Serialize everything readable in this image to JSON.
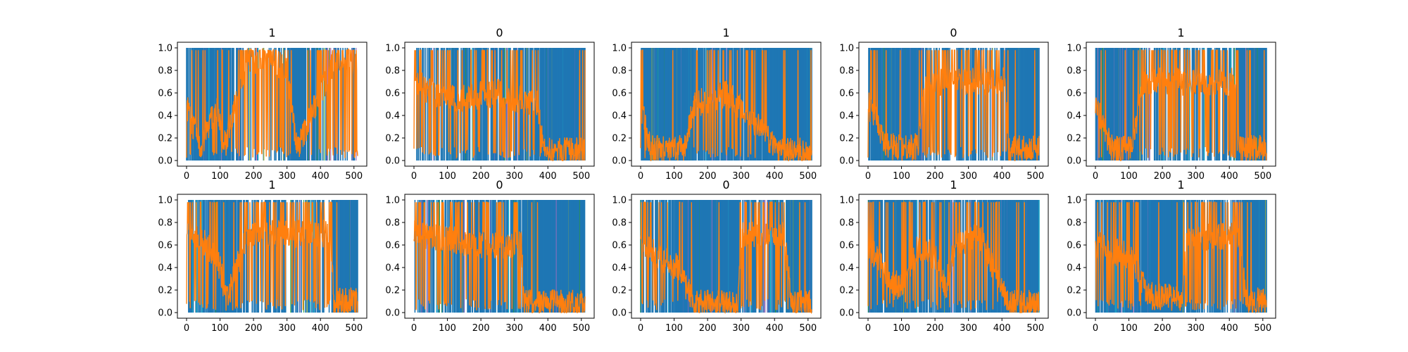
{
  "chart_data": [
    {
      "type": "line",
      "title": "1",
      "x_ticks": [
        "0",
        "100",
        "200",
        "300",
        "400",
        "500"
      ],
      "y_ticks": [
        "0.0",
        "0.2",
        "0.4",
        "0.6",
        "0.8",
        "1.0"
      ],
      "xlim": [
        0,
        511
      ],
      "ylim": [
        0,
        1
      ],
      "series": [
        {
          "color": "#1f77b4",
          "segments": [
            [
              0,
              0.5
            ],
            [
              40,
              0.9
            ],
            [
              90,
              0.5
            ],
            [
              110,
              0.9
            ],
            [
              180,
              0.12
            ],
            [
              260,
              0.12
            ],
            [
              300,
              0.2
            ],
            [
              330,
              0.9
            ],
            [
              440,
              0.12
            ],
            [
              511,
              0.12
            ]
          ]
        },
        {
          "color": "#ff7f0e",
          "segments": [
            [
              0,
              0.5
            ],
            [
              40,
              0.1
            ],
            [
              90,
              0.5
            ],
            [
              110,
              0.1
            ],
            [
              180,
              0.88
            ],
            [
              260,
              0.88
            ],
            [
              300,
              0.8
            ],
            [
              330,
              0.1
            ],
            [
              440,
              0.88
            ],
            [
              511,
              0.88
            ]
          ]
        }
      ]
    },
    {
      "type": "line",
      "title": "0",
      "x_ticks": [
        "0",
        "100",
        "200",
        "300",
        "400",
        "500"
      ],
      "y_ticks": [
        "0.0",
        "0.2",
        "0.4",
        "0.6",
        "0.8",
        "1.0"
      ],
      "xlim": [
        0,
        511
      ],
      "ylim": [
        0,
        1
      ],
      "series": [
        {
          "color": "#1f77b4",
          "segments": [
            [
              0,
              0.3
            ],
            [
              60,
              0.4
            ],
            [
              120,
              0.45
            ],
            [
              250,
              0.4
            ],
            [
              370,
              0.5
            ],
            [
              390,
              0.92
            ],
            [
              511,
              0.92
            ]
          ]
        },
        {
          "color": "#ff7f0e",
          "segments": [
            [
              0,
              0.7
            ],
            [
              60,
              0.6
            ],
            [
              120,
              0.55
            ],
            [
              250,
              0.6
            ],
            [
              370,
              0.5
            ],
            [
              390,
              0.08
            ],
            [
              511,
              0.08
            ]
          ]
        }
      ]
    },
    {
      "type": "line",
      "title": "1",
      "x_ticks": [
        "0",
        "100",
        "200",
        "300",
        "400",
        "500"
      ],
      "y_ticks": [
        "0.0",
        "0.2",
        "0.4",
        "0.6",
        "0.8",
        "1.0"
      ],
      "xlim": [
        0,
        511
      ],
      "ylim": [
        0,
        1
      ],
      "series": [
        {
          "color": "#1f77b4",
          "segments": [
            [
              0,
              0.5
            ],
            [
              30,
              0.9
            ],
            [
              130,
              0.9
            ],
            [
              160,
              0.5
            ],
            [
              260,
              0.4
            ],
            [
              420,
              0.92
            ],
            [
              511,
              0.92
            ]
          ]
        },
        {
          "color": "#ff7f0e",
          "segments": [
            [
              0,
              0.5
            ],
            [
              30,
              0.1
            ],
            [
              130,
              0.1
            ],
            [
              160,
              0.5
            ],
            [
              260,
              0.6
            ],
            [
              420,
              0.08
            ],
            [
              511,
              0.08
            ]
          ]
        }
      ]
    },
    {
      "type": "line",
      "title": "0",
      "x_ticks": [
        "0",
        "100",
        "200",
        "300",
        "400",
        "500"
      ],
      "y_ticks": [
        "0.0",
        "0.2",
        "0.4",
        "0.6",
        "0.8",
        "1.0"
      ],
      "xlim": [
        0,
        511
      ],
      "ylim": [
        0,
        1
      ],
      "series": [
        {
          "color": "#1f77b4",
          "segments": [
            [
              0,
              0.5
            ],
            [
              60,
              0.88
            ],
            [
              150,
              0.88
            ],
            [
              170,
              0.3
            ],
            [
              410,
              0.3
            ],
            [
              420,
              0.9
            ],
            [
              511,
              0.9
            ]
          ]
        },
        {
          "color": "#ff7f0e",
          "segments": [
            [
              0,
              0.5
            ],
            [
              60,
              0.12
            ],
            [
              150,
              0.12
            ],
            [
              170,
              0.7
            ],
            [
              410,
              0.7
            ],
            [
              420,
              0.1
            ],
            [
              511,
              0.1
            ]
          ]
        }
      ]
    },
    {
      "type": "line",
      "title": "1",
      "x_ticks": [
        "0",
        "100",
        "200",
        "300",
        "400",
        "500"
      ],
      "y_ticks": [
        "0.0",
        "0.2",
        "0.4",
        "0.6",
        "0.8",
        "1.0"
      ],
      "xlim": [
        0,
        511
      ],
      "ylim": [
        0,
        1
      ],
      "series": [
        {
          "color": "#1f77b4",
          "segments": [
            [
              0,
              0.5
            ],
            [
              50,
              0.9
            ],
            [
              110,
              0.9
            ],
            [
              140,
              0.3
            ],
            [
              420,
              0.3
            ],
            [
              430,
              0.9
            ],
            [
              511,
              0.9
            ]
          ]
        },
        {
          "color": "#ff7f0e",
          "segments": [
            [
              0,
              0.5
            ],
            [
              50,
              0.1
            ],
            [
              110,
              0.1
            ],
            [
              140,
              0.7
            ],
            [
              420,
              0.7
            ],
            [
              430,
              0.1
            ],
            [
              511,
              0.1
            ]
          ]
        }
      ]
    },
    {
      "type": "line",
      "title": "1",
      "x_ticks": [
        "0",
        "100",
        "200",
        "300",
        "400",
        "500"
      ],
      "y_ticks": [
        "0.0",
        "0.2",
        "0.4",
        "0.6",
        "0.8",
        "1.0"
      ],
      "xlim": [
        0,
        511
      ],
      "ylim": [
        0,
        1
      ],
      "series": [
        {
          "color": "#1f77b4",
          "segments": [
            [
              0,
              0.2
            ],
            [
              60,
              0.4
            ],
            [
              100,
              0.6
            ],
            [
              120,
              0.9
            ],
            [
              180,
              0.3
            ],
            [
              430,
              0.3
            ],
            [
              440,
              0.9
            ],
            [
              511,
              0.9
            ]
          ]
        },
        {
          "color": "#ff7f0e",
          "segments": [
            [
              0,
              0.8
            ],
            [
              60,
              0.6
            ],
            [
              100,
              0.4
            ],
            [
              120,
              0.1
            ],
            [
              180,
              0.7
            ],
            [
              430,
              0.7
            ],
            [
              440,
              0.1
            ],
            [
              511,
              0.1
            ]
          ]
        }
      ]
    },
    {
      "type": "line",
      "title": "0",
      "x_ticks": [
        "0",
        "100",
        "200",
        "300",
        "400",
        "500"
      ],
      "y_ticks": [
        "0.0",
        "0.2",
        "0.4",
        "0.6",
        "0.8",
        "1.0"
      ],
      "xlim": [
        0,
        511
      ],
      "ylim": [
        0,
        1
      ],
      "series": [
        {
          "color": "#1f77b4",
          "segments": [
            [
              0,
              0.3
            ],
            [
              100,
              0.35
            ],
            [
              200,
              0.4
            ],
            [
              320,
              0.4
            ],
            [
              330,
              0.92
            ],
            [
              511,
              0.92
            ]
          ]
        },
        {
          "color": "#ff7f0e",
          "segments": [
            [
              0,
              0.7
            ],
            [
              100,
              0.65
            ],
            [
              200,
              0.6
            ],
            [
              320,
              0.6
            ],
            [
              330,
              0.08
            ],
            [
              511,
              0.08
            ]
          ]
        }
      ]
    },
    {
      "type": "line",
      "title": "0",
      "x_ticks": [
        "0",
        "100",
        "200",
        "300",
        "400",
        "500"
      ],
      "y_ticks": [
        "0.0",
        "0.2",
        "0.4",
        "0.6",
        "0.8",
        "1.0"
      ],
      "xlim": [
        0,
        511
      ],
      "ylim": [
        0,
        1
      ],
      "series": [
        {
          "color": "#1f77b4",
          "segments": [
            [
              0,
              0.4
            ],
            [
              110,
              0.6
            ],
            [
              160,
              0.92
            ],
            [
              290,
              0.92
            ],
            [
              300,
              0.3
            ],
            [
              430,
              0.3
            ],
            [
              450,
              0.92
            ],
            [
              511,
              0.92
            ]
          ]
        },
        {
          "color": "#ff7f0e",
          "segments": [
            [
              0,
              0.6
            ],
            [
              110,
              0.4
            ],
            [
              160,
              0.08
            ],
            [
              290,
              0.08
            ],
            [
              300,
              0.7
            ],
            [
              430,
              0.7
            ],
            [
              450,
              0.08
            ],
            [
              511,
              0.08
            ]
          ]
        }
      ]
    },
    {
      "type": "line",
      "title": "1",
      "x_ticks": [
        "0",
        "100",
        "200",
        "300",
        "400",
        "500"
      ],
      "y_ticks": [
        "0.0",
        "0.2",
        "0.4",
        "0.6",
        "0.8",
        "1.0"
      ],
      "xlim": [
        0,
        511
      ],
      "ylim": [
        0,
        1
      ],
      "series": [
        {
          "color": "#1f77b4",
          "segments": [
            [
              0,
              0.4
            ],
            [
              60,
              0.7
            ],
            [
              110,
              0.8
            ],
            [
              150,
              0.4
            ],
            [
              200,
              0.5
            ],
            [
              230,
              0.8
            ],
            [
              260,
              0.4
            ],
            [
              330,
              0.3
            ],
            [
              420,
              0.92
            ],
            [
              511,
              0.92
            ]
          ]
        },
        {
          "color": "#ff7f0e",
          "segments": [
            [
              0,
              0.6
            ],
            [
              60,
              0.3
            ],
            [
              110,
              0.2
            ],
            [
              150,
              0.6
            ],
            [
              200,
              0.5
            ],
            [
              230,
              0.2
            ],
            [
              260,
              0.6
            ],
            [
              330,
              0.7
            ],
            [
              420,
              0.08
            ],
            [
              511,
              0.08
            ]
          ]
        }
      ]
    },
    {
      "type": "line",
      "title": "1",
      "x_ticks": [
        "0",
        "100",
        "200",
        "300",
        "400",
        "500"
      ],
      "y_ticks": [
        "0.0",
        "0.2",
        "0.4",
        "0.6",
        "0.8",
        "1.0"
      ],
      "xlim": [
        0,
        511
      ],
      "ylim": [
        0,
        1
      ],
      "series": [
        {
          "color": "#1f77b4",
          "segments": [
            [
              0,
              0.4
            ],
            [
              100,
              0.5
            ],
            [
              160,
              0.85
            ],
            [
              260,
              0.88
            ],
            [
              270,
              0.35
            ],
            [
              430,
              0.3
            ],
            [
              450,
              0.9
            ],
            [
              511,
              0.9
            ]
          ]
        },
        {
          "color": "#ff7f0e",
          "segments": [
            [
              0,
              0.6
            ],
            [
              100,
              0.5
            ],
            [
              160,
              0.15
            ],
            [
              260,
              0.12
            ],
            [
              270,
              0.65
            ],
            [
              430,
              0.7
            ],
            [
              450,
              0.1
            ],
            [
              511,
              0.1
            ]
          ]
        }
      ]
    }
  ]
}
